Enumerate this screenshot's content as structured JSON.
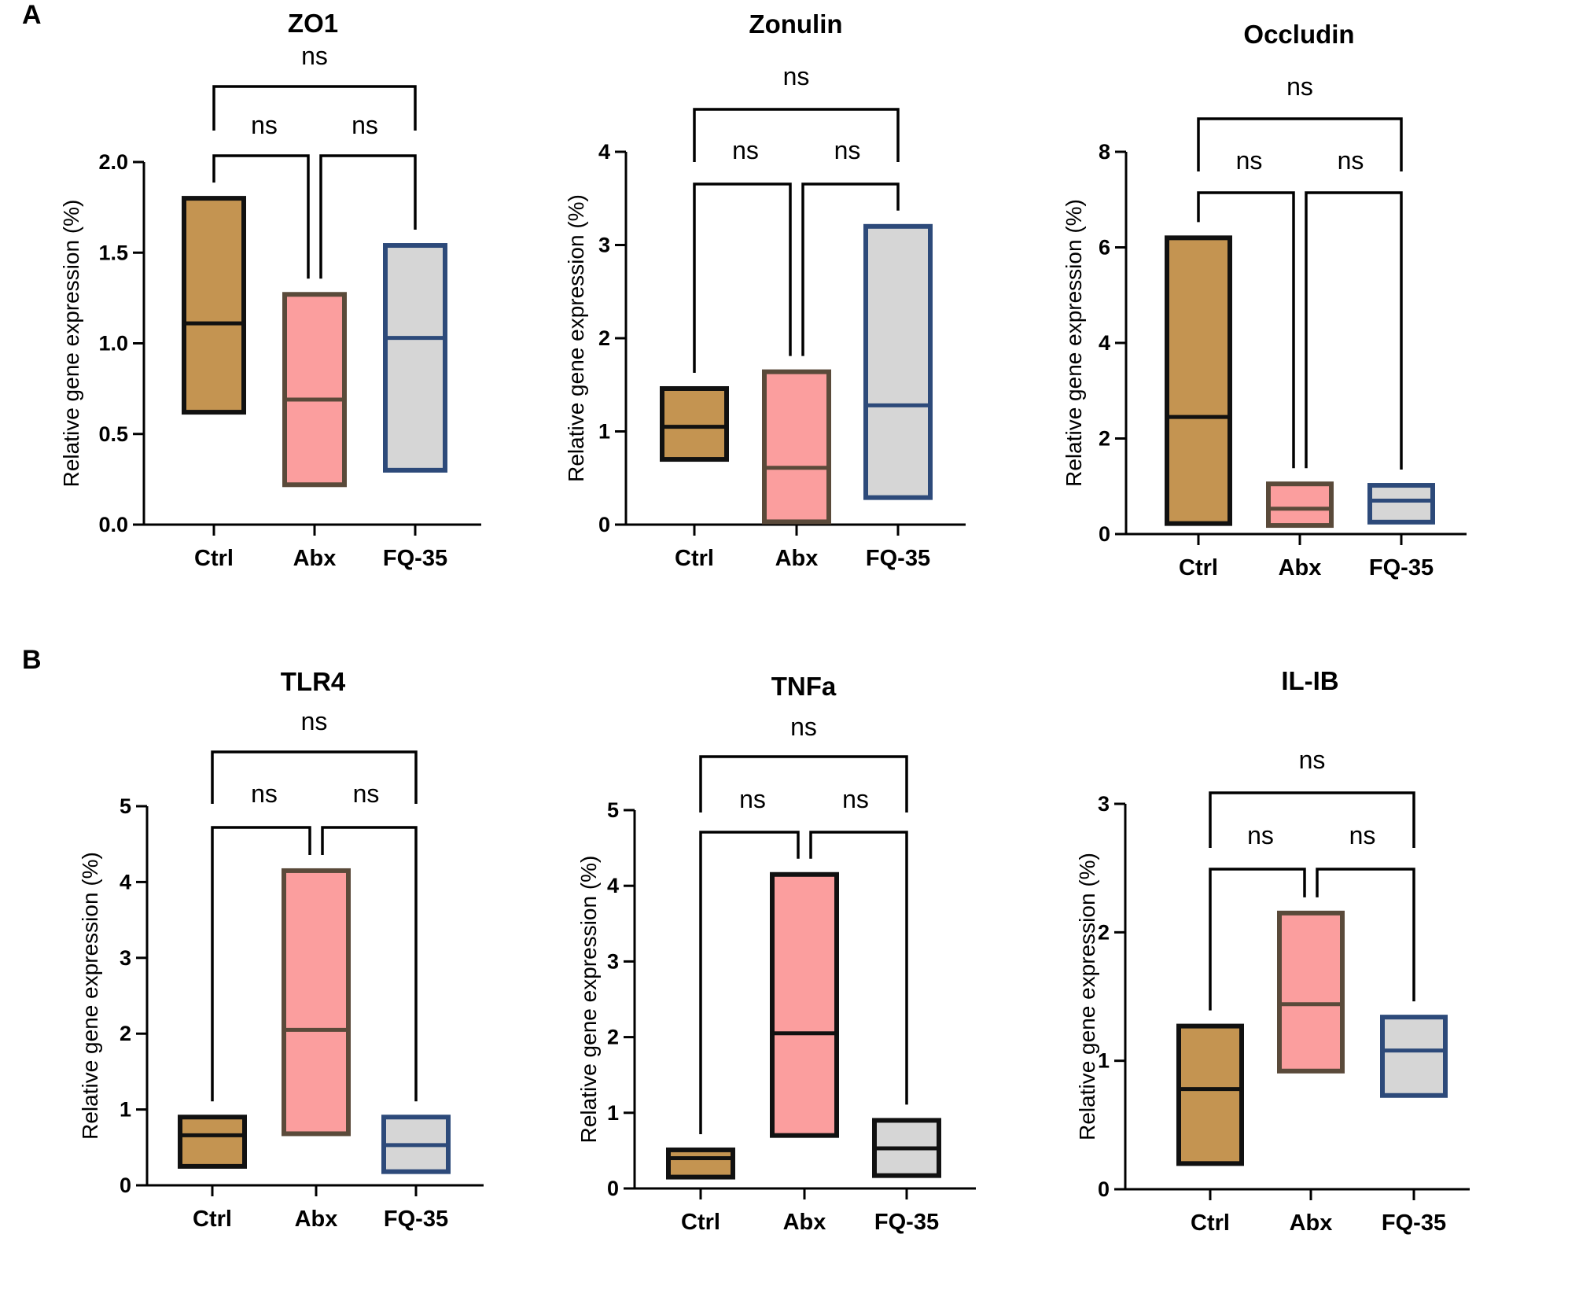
{
  "panels": {
    "A": "A",
    "B": "B"
  },
  "colors": {
    "Ctrl": "#c49451",
    "Abx": "#fb9e9e",
    "FQ-35": "#d6d6d6",
    "axis": "#000000"
  },
  "chart_data": [
    {
      "type": "box",
      "panel": "A",
      "title": "ZO1",
      "ylabel": "Relative gene expression (%)",
      "ylim": [
        0,
        2.0
      ],
      "yticks": [
        0,
        0.5,
        1.0,
        1.5,
        2.0
      ],
      "ytick_labels": [
        "0.0",
        "0.5",
        "1.0",
        "1.5",
        "2.0"
      ],
      "categories": [
        "Ctrl",
        "Abx",
        "FQ-35"
      ],
      "boxes": [
        {
          "category": "Ctrl",
          "min": 0.62,
          "median": 1.11,
          "max": 1.8,
          "fill": "#c49451",
          "edge": "#111111"
        },
        {
          "category": "Abx",
          "min": 0.22,
          "median": 0.69,
          "max": 1.27,
          "fill": "#fb9e9e",
          "edge": "#5a4a3a"
        },
        {
          "category": "FQ-35",
          "min": 0.3,
          "median": 1.03,
          "max": 1.54,
          "fill": "#d6d6d6",
          "edge": "#2d4a7a"
        }
      ],
      "comparisons": [
        {
          "from": "Ctrl",
          "to": "Abx",
          "label": "ns"
        },
        {
          "from": "Abx",
          "to": "FQ-35",
          "label": "ns"
        },
        {
          "from": "Ctrl",
          "to": "FQ-35",
          "label": "ns"
        }
      ]
    },
    {
      "type": "box",
      "panel": "A",
      "title": "Zonulin",
      "ylabel": "Relative gene expression (%)",
      "ylim": [
        0,
        4
      ],
      "yticks": [
        0,
        1,
        2,
        3,
        4
      ],
      "ytick_labels": [
        "0",
        "1",
        "2",
        "3",
        "4"
      ],
      "categories": [
        "Ctrl",
        "Abx",
        "FQ-35"
      ],
      "boxes": [
        {
          "category": "Ctrl",
          "min": 0.7,
          "median": 1.05,
          "max": 1.46,
          "fill": "#c49451",
          "edge": "#111111"
        },
        {
          "category": "Abx",
          "min": 0.03,
          "median": 0.61,
          "max": 1.64,
          "fill": "#fb9e9e",
          "edge": "#5a4a3a"
        },
        {
          "category": "FQ-35",
          "min": 0.29,
          "median": 1.28,
          "max": 3.2,
          "fill": "#d6d6d6",
          "edge": "#2d4a7a"
        }
      ],
      "comparisons": [
        {
          "from": "Ctrl",
          "to": "Abx",
          "label": "ns"
        },
        {
          "from": "Abx",
          "to": "FQ-35",
          "label": "ns"
        },
        {
          "from": "Ctrl",
          "to": "FQ-35",
          "label": "ns"
        }
      ]
    },
    {
      "type": "box",
      "panel": "A",
      "title": "Occludin",
      "ylabel": "Relative gene expression (%)",
      "ylim": [
        0,
        8
      ],
      "yticks": [
        0,
        2,
        4,
        6,
        8
      ],
      "ytick_labels": [
        "0",
        "2",
        "4",
        "6",
        "8"
      ],
      "categories": [
        "Ctrl",
        "Abx",
        "FQ-35"
      ],
      "boxes": [
        {
          "category": "Ctrl",
          "min": 0.22,
          "median": 2.45,
          "max": 6.2,
          "fill": "#c49451",
          "edge": "#111111"
        },
        {
          "category": "Abx",
          "min": 0.18,
          "median": 0.53,
          "max": 1.05,
          "fill": "#fb9e9e",
          "edge": "#5a4a3a"
        },
        {
          "category": "FQ-35",
          "min": 0.25,
          "median": 0.7,
          "max": 1.02,
          "fill": "#d6d6d6",
          "edge": "#2d4a7a"
        }
      ],
      "comparisons": [
        {
          "from": "Ctrl",
          "to": "Abx",
          "label": "ns"
        },
        {
          "from": "Abx",
          "to": "FQ-35",
          "label": "ns"
        },
        {
          "from": "Ctrl",
          "to": "FQ-35",
          "label": "ns"
        }
      ]
    },
    {
      "type": "box",
      "panel": "B",
      "title": "TLR4",
      "ylabel": "Relative gene expression (%)",
      "ylim": [
        0,
        5
      ],
      "yticks": [
        0,
        1,
        2,
        3,
        4,
        5
      ],
      "ytick_labels": [
        "0",
        "1",
        "2",
        "3",
        "4",
        "5"
      ],
      "categories": [
        "Ctrl",
        "Abx",
        "FQ-35"
      ],
      "boxes": [
        {
          "category": "Ctrl",
          "min": 0.25,
          "median": 0.66,
          "max": 0.9,
          "fill": "#c49451",
          "edge": "#111111"
        },
        {
          "category": "Abx",
          "min": 0.68,
          "median": 2.05,
          "max": 4.15,
          "fill": "#fb9e9e",
          "edge": "#5a4a3a"
        },
        {
          "category": "FQ-35",
          "min": 0.18,
          "median": 0.53,
          "max": 0.9,
          "fill": "#d6d6d6",
          "edge": "#2d4a7a"
        }
      ],
      "comparisons": [
        {
          "from": "Ctrl",
          "to": "Abx",
          "label": "ns"
        },
        {
          "from": "Abx",
          "to": "FQ-35",
          "label": "ns"
        },
        {
          "from": "Ctrl",
          "to": "FQ-35",
          "label": "ns"
        }
      ]
    },
    {
      "type": "box",
      "panel": "B",
      "title": "TNFa",
      "ylabel": "Relative gene expression (%)",
      "ylim": [
        0,
        5
      ],
      "yticks": [
        0,
        1,
        2,
        3,
        4,
        5
      ],
      "ytick_labels": [
        "0",
        "1",
        "2",
        "3",
        "4",
        "5"
      ],
      "categories": [
        "Ctrl",
        "Abx",
        "FQ-35"
      ],
      "boxes": [
        {
          "category": "Ctrl",
          "min": 0.15,
          "median": 0.4,
          "max": 0.51,
          "fill": "#c49451",
          "edge": "#111111"
        },
        {
          "category": "Abx",
          "min": 0.7,
          "median": 2.05,
          "max": 4.15,
          "fill": "#fb9e9e",
          "edge": "#111111"
        },
        {
          "category": "FQ-35",
          "min": 0.17,
          "median": 0.53,
          "max": 0.9,
          "fill": "#d6d6d6",
          "edge": "#111111"
        }
      ],
      "comparisons": [
        {
          "from": "Ctrl",
          "to": "Abx",
          "label": "ns"
        },
        {
          "from": "Abx",
          "to": "FQ-35",
          "label": "ns"
        },
        {
          "from": "Ctrl",
          "to": "FQ-35",
          "label": "ns"
        }
      ]
    },
    {
      "type": "box",
      "panel": "B",
      "title": "IL-IB",
      "ylabel": "Relative gene expression (%)",
      "ylim": [
        0,
        3
      ],
      "yticks": [
        0,
        1,
        2,
        3
      ],
      "ytick_labels": [
        "0",
        "1",
        "2",
        "3"
      ],
      "categories": [
        "Ctrl",
        "Abx",
        "FQ-35"
      ],
      "boxes": [
        {
          "category": "Ctrl",
          "min": 0.2,
          "median": 0.78,
          "max": 1.27,
          "fill": "#c49451",
          "edge": "#111111"
        },
        {
          "category": "Abx",
          "min": 0.92,
          "median": 1.44,
          "max": 2.15,
          "fill": "#fb9e9e",
          "edge": "#5a4a3a"
        },
        {
          "category": "FQ-35",
          "min": 0.73,
          "median": 1.08,
          "max": 1.34,
          "fill": "#d6d6d6",
          "edge": "#2d4a7a"
        }
      ],
      "comparisons": [
        {
          "from": "Ctrl",
          "to": "Abx",
          "label": "ns"
        },
        {
          "from": "Abx",
          "to": "FQ-35",
          "label": "ns"
        },
        {
          "from": "Ctrl",
          "to": "FQ-35",
          "label": "ns"
        }
      ]
    }
  ]
}
